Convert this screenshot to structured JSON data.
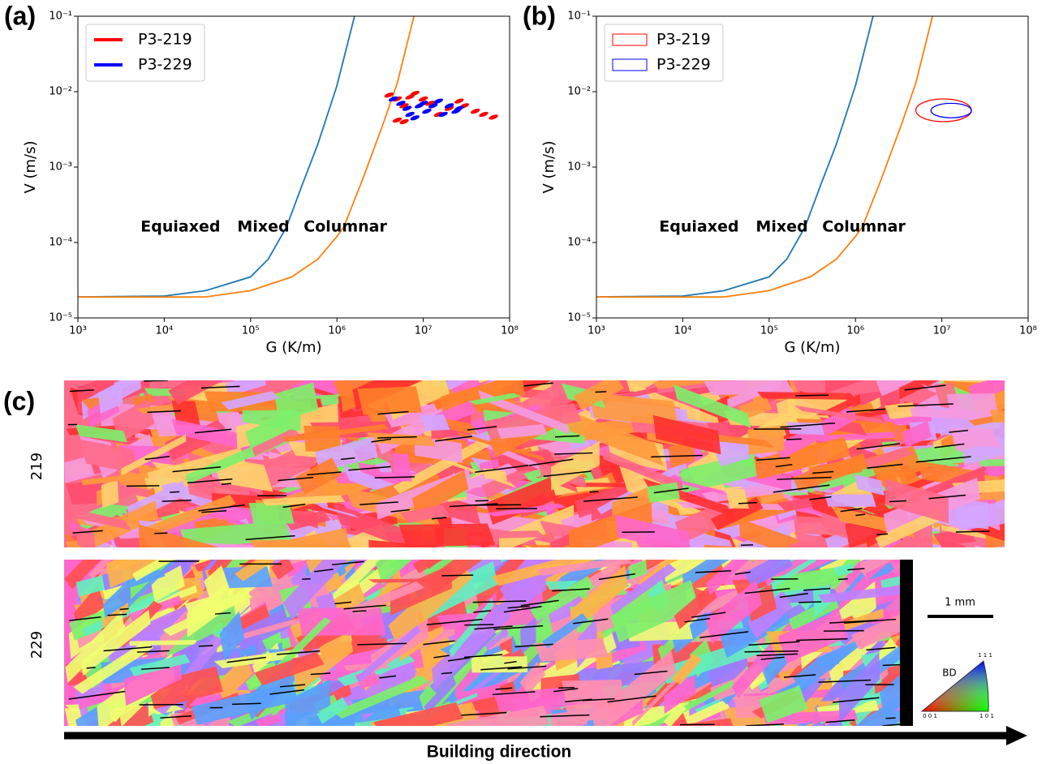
{
  "chart_data": [
    {
      "type": "line",
      "panel": "(a)",
      "xlabel": "G (K/m)",
      "ylabel": "V (m/s)",
      "log": true,
      "xlim": [
        1000,
        100000000
      ],
      "ylim": [
        1e-05,
        0.1
      ],
      "xticks": [
        {
          "value": 1000,
          "label": "10³"
        },
        {
          "value": 10000,
          "label": "10⁴"
        },
        {
          "value": 100000,
          "label": "10⁵"
        },
        {
          "value": 1000000,
          "label": "10⁶"
        },
        {
          "value": 10000000,
          "label": "10⁷"
        },
        {
          "value": 100000000,
          "label": "10⁸"
        }
      ],
      "yticks": [
        {
          "value": 1e-05,
          "label": "10⁻⁵"
        },
        {
          "value": 0.0001,
          "label": "10⁻⁴"
        },
        {
          "value": 0.001,
          "label": "10⁻³"
        },
        {
          "value": 0.01,
          "label": "10⁻²"
        },
        {
          "value": 0.1,
          "label": "10⁻¹"
        }
      ],
      "annotations": [
        "Equiaxed",
        "Mixed",
        "Columnar"
      ],
      "curves": [
        {
          "color": "#1f77b4",
          "x": [
            1000,
            10000,
            30000,
            100000,
            160000,
            260000,
            400000,
            600000,
            1000000,
            1600000
          ],
          "y": [
            1.9e-05,
            1.95e-05,
            2.3e-05,
            3.5e-05,
            6e-05,
            0.00016,
            0.0006,
            0.002,
            0.012,
            0.1
          ]
        },
        {
          "color": "#ff7f0e",
          "x": [
            1000,
            30000,
            100000,
            300000,
            600000,
            1000000,
            1200000,
            2000000,
            3500000,
            5000000,
            7800000
          ],
          "y": [
            1.9e-05,
            1.9e-05,
            2.3e-05,
            3.5e-05,
            6e-05,
            0.00012,
            0.00016,
            0.0007,
            0.004,
            0.013,
            0.1
          ]
        }
      ],
      "series": [
        {
          "name": "P3-219",
          "type": "scatter",
          "color": "#ff0000",
          "x": [
            4000000,
            5000000,
            6000000,
            7000000,
            8000000,
            10000000,
            5000000,
            6000000,
            12000000,
            15000000,
            20000000,
            26000000,
            30000000,
            40000000,
            50000000,
            65000000
          ],
          "y": [
            0.009,
            0.008,
            0.0065,
            0.0085,
            0.0095,
            0.008,
            0.0042,
            0.004,
            0.007,
            0.005,
            0.006,
            0.0075,
            0.0065,
            0.0055,
            0.005,
            0.0046
          ]
        },
        {
          "name": "P3-229",
          "type": "scatter",
          "color": "#0000ff",
          "x": [
            4500000,
            5500000,
            6500000,
            7000000,
            8000000,
            9000000,
            11000000,
            13000000,
            15000000,
            17000000,
            20000000,
            24000000,
            26000000,
            10000000
          ],
          "y": [
            0.008,
            0.007,
            0.006,
            0.005,
            0.0045,
            0.0065,
            0.0055,
            0.0065,
            0.0075,
            0.005,
            0.0065,
            0.0055,
            0.006,
            0.007
          ]
        }
      ]
    },
    {
      "type": "line",
      "panel": "(b)",
      "xlabel": "G (K/m)",
      "ylabel": "V (m/s)",
      "log": true,
      "xlim": [
        1000,
        100000000
      ],
      "ylim": [
        1e-05,
        0.1
      ],
      "xticks": [
        {
          "value": 1000,
          "label": "10³"
        },
        {
          "value": 10000,
          "label": "10⁴"
        },
        {
          "value": 100000,
          "label": "10⁵"
        },
        {
          "value": 1000000,
          "label": "10⁶"
        },
        {
          "value": 10000000,
          "label": "10⁷"
        },
        {
          "value": 100000000,
          "label": "10⁸"
        }
      ],
      "yticks": [
        {
          "value": 1e-05,
          "label": "10⁻⁵"
        },
        {
          "value": 0.0001,
          "label": "10⁻⁴"
        },
        {
          "value": 0.001,
          "label": "10⁻³"
        },
        {
          "value": 0.01,
          "label": "10⁻²"
        },
        {
          "value": 0.1,
          "label": "10⁻¹"
        }
      ],
      "annotations": [
        "Equiaxed",
        "Mixed",
        "Columnar"
      ],
      "curves": [
        {
          "color": "#1f77b4",
          "x": [
            1000,
            10000,
            30000,
            100000,
            160000,
            260000,
            400000,
            600000,
            1000000,
            1600000
          ],
          "y": [
            1.9e-05,
            1.95e-05,
            2.3e-05,
            3.5e-05,
            6e-05,
            0.00016,
            0.0006,
            0.002,
            0.012,
            0.1
          ]
        },
        {
          "color": "#ff7f0e",
          "x": [
            1000,
            30000,
            100000,
            300000,
            600000,
            1000000,
            1200000,
            2000000,
            3500000,
            5000000,
            7800000
          ],
          "y": [
            1.9e-05,
            1.9e-05,
            2.3e-05,
            3.5e-05,
            6e-05,
            0.00012,
            0.00016,
            0.0007,
            0.004,
            0.013,
            0.1
          ]
        }
      ],
      "series": [
        {
          "name": "P3-219",
          "type": "ellipse",
          "color": "#ff0000",
          "x": [
            5000000,
            22000000
          ],
          "y": [
            0.004,
            0.008
          ]
        },
        {
          "name": "P3-229",
          "type": "ellipse",
          "color": "#0000ff",
          "x": [
            7500000,
            22000000
          ],
          "y": [
            0.0045,
            0.007
          ]
        }
      ]
    }
  ],
  "micrographs": {
    "panel": "(c)",
    "rows": [
      "219",
      "229"
    ],
    "scale_bar": "1 mm",
    "ipf_legend": {
      "title": "BD",
      "corners": [
        "0 0 1",
        "1 0 1",
        "1 1 1"
      ]
    },
    "arrow_label": "Building direction"
  }
}
